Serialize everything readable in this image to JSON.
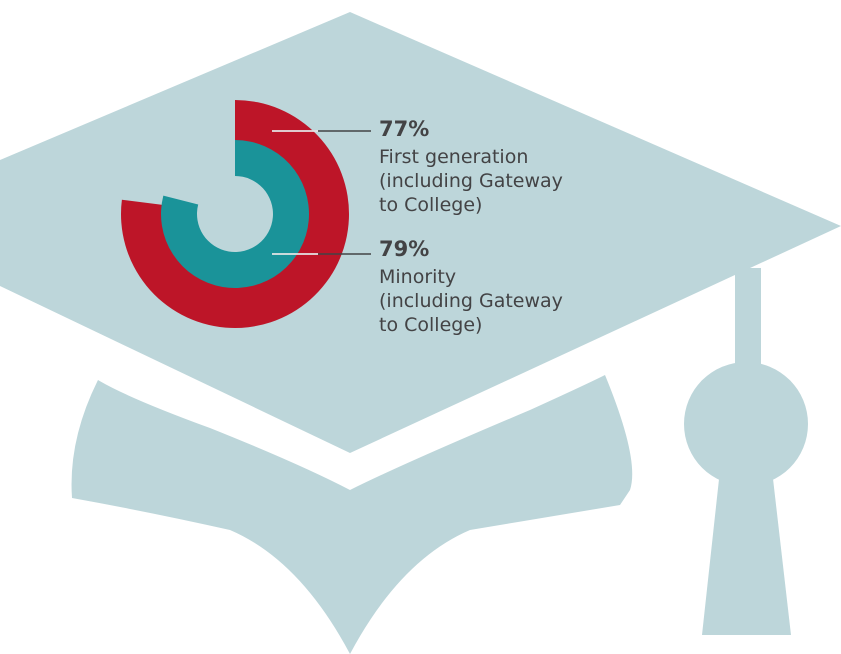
{
  "colors": {
    "background": "#ffffff",
    "cap": "#bdd6da",
    "outer_ring": "#bd1528",
    "inner_ring": "#1a9399",
    "text": "#434345",
    "leader": "#434345"
  },
  "icon": "graduation-cap-icon",
  "chart_data": {
    "type": "pie",
    "subtype": "concentric-rings",
    "series": [
      {
        "value": 77,
        "unit": "%",
        "value_label": "77%",
        "label_lines": [
          "First generation",
          "(including Gateway",
          "to College)"
        ],
        "color": "#bd1528",
        "ring": "outer"
      },
      {
        "value": 79,
        "unit": "%",
        "value_label": "79%",
        "label_lines": [
          "Minority",
          "(including Gateway",
          "to College)"
        ],
        "color": "#1a9399",
        "ring": "inner"
      }
    ]
  }
}
